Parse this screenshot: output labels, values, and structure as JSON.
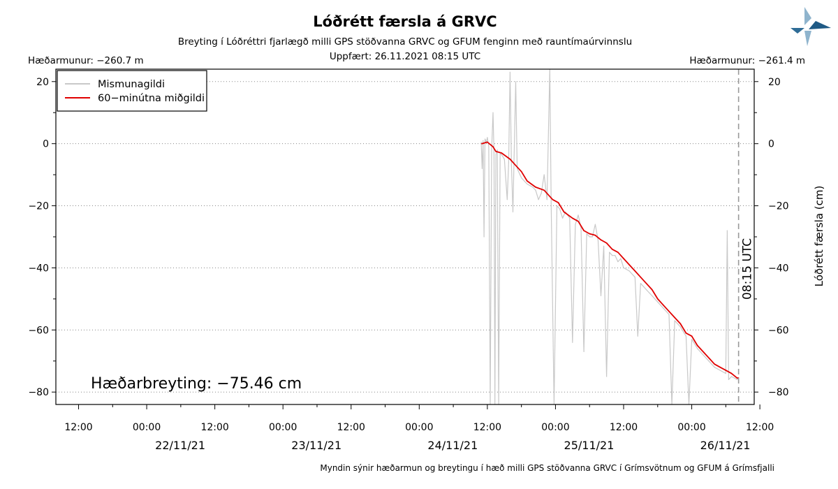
{
  "header": {
    "title": "Lóðrétt færsla á GRVC",
    "subtitle": "Breyting í Lóðréttri fjarlægð milli GPS stöðvanna GRVC og GFUM fenginn með rauntímaúrvinnslu",
    "updated": "Uppfært: 26.11.2021 08:15 UTC",
    "left_offset": "Hæðarmunur: −260.7 m",
    "right_offset": "Hæðarmunur: −261.4 m"
  },
  "footer": {
    "caption": "Myndin sýnir hæðarmun og breytingu í hæð milli GPS stöðvanna GRVC í Grímsvötnum og GFUM á Grímsfjalli"
  },
  "annotation": {
    "change_text": "Hæðarbreyting: −75.46 cm",
    "marker_text": "08:15 UTC"
  },
  "colors": {
    "raw": "#c8c8c8",
    "median": "#e00000",
    "grid": "#888888",
    "marker": "#999999"
  },
  "chart_data": {
    "type": "line",
    "ylabel": "Lóðrétt færsla (cm)",
    "ylim": [
      -84,
      24
    ],
    "yticks": [
      20,
      0,
      -20,
      -40,
      -60,
      -80
    ],
    "xlim": [
      "2021-11-21T08:00",
      "2021-11-26T11:00"
    ],
    "xticks": [
      {
        "t": "2021-11-21T12:00",
        "label": "12:00"
      },
      {
        "t": "2021-11-22T00:00",
        "label": "00:00",
        "date": "22/11/21"
      },
      {
        "t": "2021-11-22T12:00",
        "label": "12:00"
      },
      {
        "t": "2021-11-23T00:00",
        "label": "00:00",
        "date": "23/11/21"
      },
      {
        "t": "2021-11-23T12:00",
        "label": "12:00"
      },
      {
        "t": "2021-11-24T00:00",
        "label": "00:00",
        "date": "24/11/21"
      },
      {
        "t": "2021-11-24T12:00",
        "label": "12:00"
      },
      {
        "t": "2021-11-25T00:00",
        "label": "00:00",
        "date": "25/11/21"
      },
      {
        "t": "2021-11-25T12:00",
        "label": "12:00"
      },
      {
        "t": "2021-11-26T00:00",
        "label": "00:00",
        "date": "26/11/21"
      },
      {
        "t": "2021-11-26T12:00",
        "label": "12:00"
      }
    ],
    "grid": "horizontal-dotted",
    "legend_position": "top-left",
    "marker_time": "2021-11-26T08:15",
    "series": [
      {
        "name": "Mismunagildi",
        "style": "raw",
        "values": [
          {
            "t": "2021-11-24T10:55",
            "y": 0.5
          },
          {
            "t": "2021-11-24T11:05",
            "y": -8
          },
          {
            "t": "2021-11-24T11:15",
            "y": 1
          },
          {
            "t": "2021-11-24T11:25",
            "y": -30
          },
          {
            "t": "2021-11-24T11:35",
            "y": 1.5
          },
          {
            "t": "2021-11-24T11:50",
            "y": 0.5
          },
          {
            "t": "2021-11-24T12:00",
            "y": 2
          },
          {
            "t": "2021-11-24T12:15",
            "y": -1
          },
          {
            "t": "2021-11-24T12:30",
            "y": -84
          },
          {
            "t": "2021-11-24T12:45",
            "y": -2
          },
          {
            "t": "2021-11-24T13:00",
            "y": 10
          },
          {
            "t": "2021-11-24T13:10",
            "y": -3
          },
          {
            "t": "2021-11-24T13:20",
            "y": -84
          },
          {
            "t": "2021-11-24T13:30",
            "y": -3.5
          },
          {
            "t": "2021-11-24T13:45",
            "y": -2
          },
          {
            "t": "2021-11-24T14:00",
            "y": -84
          },
          {
            "t": "2021-11-24T14:15",
            "y": -3
          },
          {
            "t": "2021-11-24T14:40",
            "y": -4
          },
          {
            "t": "2021-11-24T15:00",
            "y": -5
          },
          {
            "t": "2021-11-24T15:30",
            "y": -18
          },
          {
            "t": "2021-11-24T15:45",
            "y": -6
          },
          {
            "t": "2021-11-24T16:00",
            "y": 23
          },
          {
            "t": "2021-11-24T16:15",
            "y": -7
          },
          {
            "t": "2021-11-24T16:30",
            "y": -22
          },
          {
            "t": "2021-11-24T17:00",
            "y": 20
          },
          {
            "t": "2021-11-24T17:15",
            "y": -8
          },
          {
            "t": "2021-11-24T17:45",
            "y": -10
          },
          {
            "t": "2021-11-24T18:00",
            "y": -11
          },
          {
            "t": "2021-11-24T18:30",
            "y": -12
          },
          {
            "t": "2021-11-24T19:00",
            "y": -13
          },
          {
            "t": "2021-11-24T19:30",
            "y": -13.5
          },
          {
            "t": "2021-11-24T20:00",
            "y": -14
          },
          {
            "t": "2021-11-24T20:30",
            "y": -15
          },
          {
            "t": "2021-11-24T21:00",
            "y": -18
          },
          {
            "t": "2021-11-24T21:30",
            "y": -16
          },
          {
            "t": "2021-11-24T22:00",
            "y": -10
          },
          {
            "t": "2021-11-24T22:30",
            "y": -18
          },
          {
            "t": "2021-11-24T23:00",
            "y": 24
          },
          {
            "t": "2021-11-24T23:15",
            "y": -20
          },
          {
            "t": "2021-11-24T23:45",
            "y": -84
          },
          {
            "t": "2021-11-25T00:15",
            "y": -20
          },
          {
            "t": "2021-11-25T00:45",
            "y": -21
          },
          {
            "t": "2021-11-25T01:15",
            "y": -24
          },
          {
            "t": "2021-11-25T01:45",
            "y": -22
          },
          {
            "t": "2021-11-25T02:30",
            "y": -24
          },
          {
            "t": "2021-11-25T03:00",
            "y": -64
          },
          {
            "t": "2021-11-25T03:30",
            "y": -26
          },
          {
            "t": "2021-11-25T04:00",
            "y": -23
          },
          {
            "t": "2021-11-25T04:30",
            "y": -27
          },
          {
            "t": "2021-11-25T05:00",
            "y": -67
          },
          {
            "t": "2021-11-25T05:30",
            "y": -29
          },
          {
            "t": "2021-11-25T06:00",
            "y": -30
          },
          {
            "t": "2021-11-25T06:30",
            "y": -30
          },
          {
            "t": "2021-11-25T07:00",
            "y": -26
          },
          {
            "t": "2021-11-25T07:30",
            "y": -31
          },
          {
            "t": "2021-11-25T08:00",
            "y": -49
          },
          {
            "t": "2021-11-25T08:30",
            "y": -33
          },
          {
            "t": "2021-11-25T09:00",
            "y": -75
          },
          {
            "t": "2021-11-25T09:30",
            "y": -35
          },
          {
            "t": "2021-11-25T10:00",
            "y": -36
          },
          {
            "t": "2021-11-25T10:30",
            "y": -36
          },
          {
            "t": "2021-11-25T11:00",
            "y": -38
          },
          {
            "t": "2021-11-25T11:30",
            "y": -37
          },
          {
            "t": "2021-11-25T12:00",
            "y": -40
          },
          {
            "t": "2021-11-25T13:00",
            "y": -41
          },
          {
            "t": "2021-11-25T14:00",
            "y": -43
          },
          {
            "t": "2021-11-25T14:30",
            "y": -62
          },
          {
            "t": "2021-11-25T15:00",
            "y": -45
          },
          {
            "t": "2021-11-25T16:00",
            "y": -47
          },
          {
            "t": "2021-11-25T17:00",
            "y": -49
          },
          {
            "t": "2021-11-25T18:00",
            "y": -51
          },
          {
            "t": "2021-11-25T19:00",
            "y": -53
          },
          {
            "t": "2021-11-25T20:00",
            "y": -55
          },
          {
            "t": "2021-11-25T20:30",
            "y": -84
          },
          {
            "t": "2021-11-25T21:00",
            "y": -57
          },
          {
            "t": "2021-11-25T22:00",
            "y": -59
          },
          {
            "t": "2021-11-25T23:00",
            "y": -62
          },
          {
            "t": "2021-11-25T23:30",
            "y": -84
          },
          {
            "t": "2021-11-26T00:00",
            "y": -63
          },
          {
            "t": "2021-11-26T01:00",
            "y": -66
          },
          {
            "t": "2021-11-26T02:00",
            "y": -68
          },
          {
            "t": "2021-11-26T03:00",
            "y": -70
          },
          {
            "t": "2021-11-26T04:00",
            "y": -72
          },
          {
            "t": "2021-11-26T05:00",
            "y": -73
          },
          {
            "t": "2021-11-26T06:00",
            "y": -74
          },
          {
            "t": "2021-11-26T06:15",
            "y": -28
          },
          {
            "t": "2021-11-26T06:30",
            "y": -76
          },
          {
            "t": "2021-11-26T07:00",
            "y": -75
          },
          {
            "t": "2021-11-26T08:00",
            "y": -76
          },
          {
            "t": "2021-11-26T08:15",
            "y": -75.5
          }
        ]
      },
      {
        "name": "60−minútna miðgildi",
        "style": "median",
        "values": [
          {
            "t": "2021-11-24T11:00",
            "y": 0
          },
          {
            "t": "2021-11-24T12:00",
            "y": 0.5
          },
          {
            "t": "2021-11-24T13:00",
            "y": -1
          },
          {
            "t": "2021-11-24T13:30",
            "y": -2.5
          },
          {
            "t": "2021-11-24T14:30",
            "y": -3
          },
          {
            "t": "2021-11-24T16:00",
            "y": -5
          },
          {
            "t": "2021-11-24T17:00",
            "y": -7
          },
          {
            "t": "2021-11-24T18:00",
            "y": -9
          },
          {
            "t": "2021-11-24T19:00",
            "y": -12
          },
          {
            "t": "2021-11-24T20:30",
            "y": -14
          },
          {
            "t": "2021-11-24T22:00",
            "y": -15
          },
          {
            "t": "2021-11-24T23:30",
            "y": -18
          },
          {
            "t": "2021-11-25T00:30",
            "y": -19
          },
          {
            "t": "2021-11-25T01:30",
            "y": -22
          },
          {
            "t": "2021-11-25T03:00",
            "y": -24
          },
          {
            "t": "2021-11-25T04:00",
            "y": -25
          },
          {
            "t": "2021-11-25T05:00",
            "y": -28
          },
          {
            "t": "2021-11-25T06:00",
            "y": -29
          },
          {
            "t": "2021-11-25T07:00",
            "y": -29.5
          },
          {
            "t": "2021-11-25T08:00",
            "y": -31
          },
          {
            "t": "2021-11-25T09:00",
            "y": -32
          },
          {
            "t": "2021-11-25T10:00",
            "y": -34
          },
          {
            "t": "2021-11-25T11:00",
            "y": -35
          },
          {
            "t": "2021-11-25T12:00",
            "y": -37
          },
          {
            "t": "2021-11-25T13:00",
            "y": -39
          },
          {
            "t": "2021-11-25T14:00",
            "y": -41
          },
          {
            "t": "2021-11-25T15:00",
            "y": -43
          },
          {
            "t": "2021-11-25T16:00",
            "y": -45
          },
          {
            "t": "2021-11-25T17:00",
            "y": -47
          },
          {
            "t": "2021-11-25T18:00",
            "y": -50
          },
          {
            "t": "2021-11-25T19:00",
            "y": -52
          },
          {
            "t": "2021-11-25T20:00",
            "y": -54
          },
          {
            "t": "2021-11-25T21:00",
            "y": -56
          },
          {
            "t": "2021-11-25T22:00",
            "y": -58
          },
          {
            "t": "2021-11-25T23:00",
            "y": -61
          },
          {
            "t": "2021-11-26T00:00",
            "y": -62
          },
          {
            "t": "2021-11-26T01:00",
            "y": -65
          },
          {
            "t": "2021-11-26T02:00",
            "y": -67
          },
          {
            "t": "2021-11-26T03:00",
            "y": -69
          },
          {
            "t": "2021-11-26T04:00",
            "y": -71
          },
          {
            "t": "2021-11-26T05:00",
            "y": -72
          },
          {
            "t": "2021-11-26T06:00",
            "y": -73
          },
          {
            "t": "2021-11-26T07:00",
            "y": -74
          },
          {
            "t": "2021-11-26T08:00",
            "y": -75.5
          },
          {
            "t": "2021-11-26T08:15",
            "y": -75.46
          }
        ]
      }
    ]
  }
}
